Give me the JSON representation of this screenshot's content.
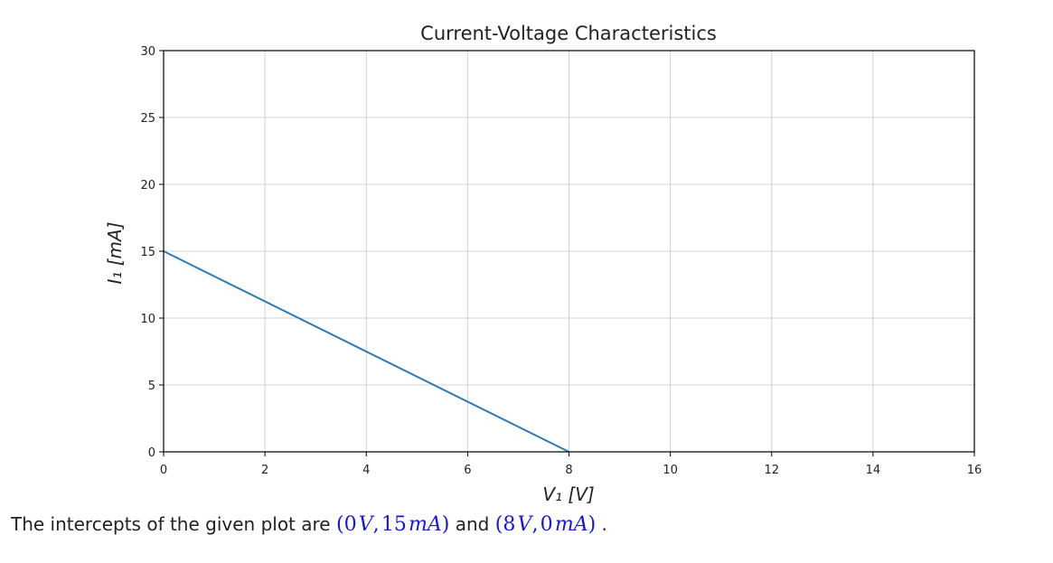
{
  "chart_data": {
    "type": "line",
    "title": "Current-Voltage Characteristics",
    "xlabel": "V₁ [V]",
    "ylabel": "I₁ [mA]",
    "xlim": [
      0,
      16
    ],
    "ylim": [
      0,
      30
    ],
    "xticks": [
      0,
      2,
      4,
      6,
      8,
      10,
      12,
      14,
      16
    ],
    "yticks": [
      0,
      5,
      10,
      15,
      20,
      25,
      30
    ],
    "grid": true,
    "series": [
      {
        "x": [
          0,
          8
        ],
        "y": [
          15,
          0
        ],
        "color": "#2b7bba"
      }
    ]
  },
  "caption": {
    "prefix": "The intercepts of the given plot are",
    "point1": {
      "v": "0",
      "v_unit": "V",
      "i": "15",
      "i_unit": "mA"
    },
    "joiner": "and",
    "point2": {
      "v": "8",
      "v_unit": "V",
      "i": "0",
      "i_unit": "mA"
    },
    "suffix": "."
  },
  "colors": {
    "line": "#2b7bba",
    "math": "#1515e0",
    "grid": "#d0d0d0"
  }
}
